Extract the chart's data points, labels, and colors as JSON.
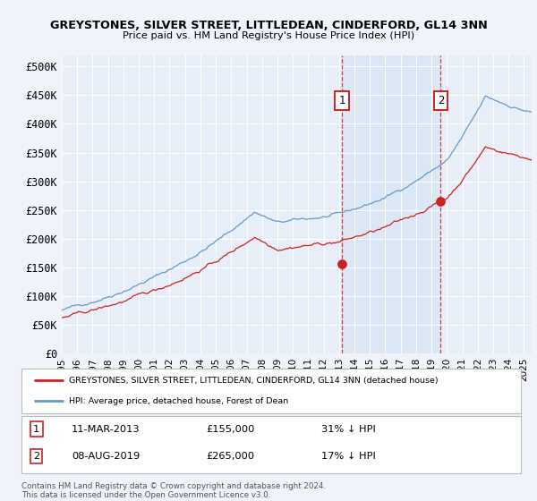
{
  "title1": "GREYSTONES, SILVER STREET, LITTLEDEAN, CINDERFORD, GL14 3NN",
  "title2": "Price paid vs. HM Land Registry's House Price Index (HPI)",
  "ylabel_ticks": [
    "£0",
    "£50K",
    "£100K",
    "£150K",
    "£200K",
    "£250K",
    "£300K",
    "£350K",
    "£400K",
    "£450K",
    "£500K"
  ],
  "ytick_values": [
    0,
    50000,
    100000,
    150000,
    200000,
    250000,
    300000,
    350000,
    400000,
    450000,
    500000
  ],
  "ylim": [
    0,
    520000
  ],
  "xlim_start": 1995.0,
  "xlim_end": 2025.5,
  "background_color": "#f0f4fa",
  "plot_bg_color": "#e8eef8",
  "hpi_color": "#6699cc",
  "price_color": "#cc2222",
  "transaction1_x": 2013.19,
  "transaction1_y": 155000,
  "transaction2_x": 2019.6,
  "transaction2_y": 265000,
  "legend_line1": "GREYSTONES, SILVER STREET, LITTLEDEAN, CINDERFORD, GL14 3NN (detached house)",
  "legend_line2": "HPI: Average price, detached house, Forest of Dean",
  "note1_date": "11-MAR-2013",
  "note1_price": "£155,000",
  "note1_hpi": "31% ↓ HPI",
  "note2_date": "08-AUG-2019",
  "note2_price": "£265,000",
  "note2_hpi": "17% ↓ HPI",
  "footer": "Contains HM Land Registry data © Crown copyright and database right 2024.\nThis data is licensed under the Open Government Licence v3.0."
}
